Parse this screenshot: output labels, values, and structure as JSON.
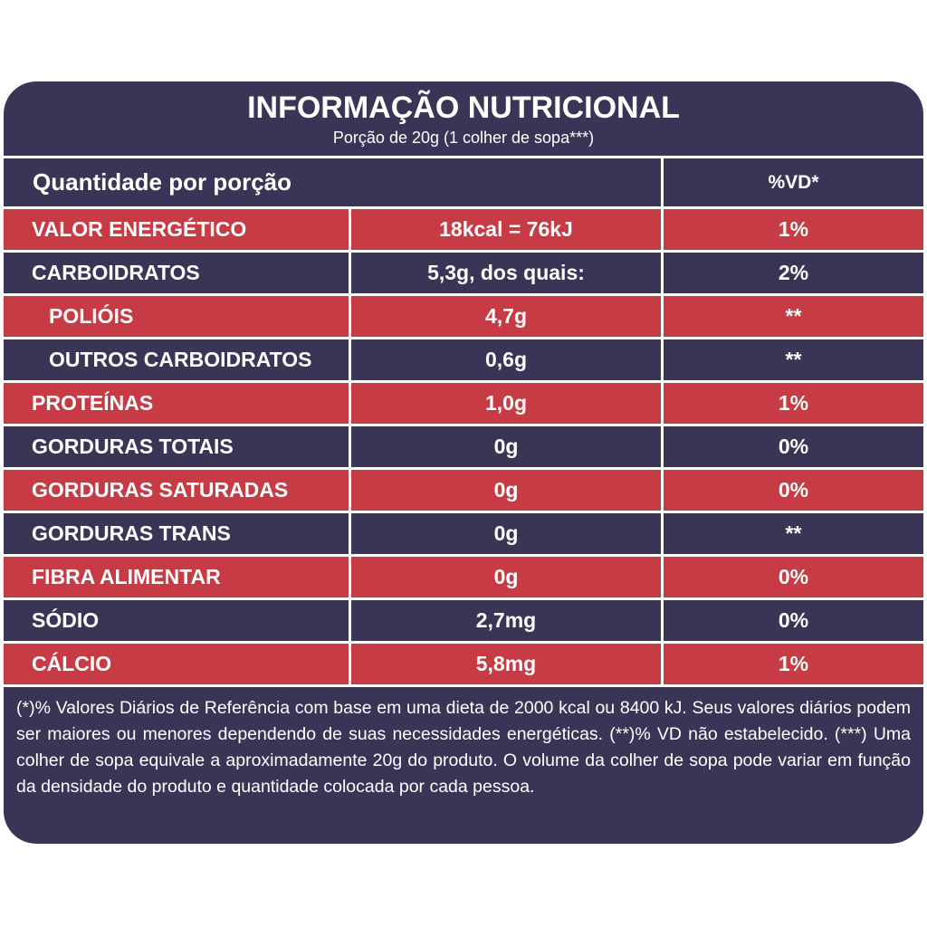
{
  "header": {
    "title": "INFORMAÇÃO NUTRICIONAL",
    "subtitle": "Porção de 20g (1 colher de sopa***)"
  },
  "table": {
    "columns": [
      "Quantidade por porção",
      "%VD*"
    ],
    "rows": [
      [
        "VALOR ENERGÉTICO",
        "18kcal = 76kJ",
        "1%"
      ],
      [
        "CARBOIDRATOS",
        "5,3g, dos quais:",
        "2%"
      ],
      [
        "POLIÓIS",
        "4,7g",
        "**"
      ],
      [
        "OUTROS CARBOIDRATOS",
        "0,6g",
        "**"
      ],
      [
        "PROTEÍNAS",
        "1,0g",
        "1%"
      ],
      [
        "GORDURAS TOTAIS",
        "0g",
        "0%"
      ],
      [
        "GORDURAS SATURADAS",
        "0g",
        "0%"
      ],
      [
        "GORDURAS TRANS",
        "0g",
        "**"
      ],
      [
        "FIBRA ALIMENTAR",
        "0g",
        "0%"
      ],
      [
        "SÓDIO",
        "2,7mg",
        "0%"
      ],
      [
        "CÁLCIO",
        "5,8mg",
        "1%"
      ]
    ]
  },
  "footnote": "(*)% Valores Diários de Referência com base em uma dieta de 2000 kcal ou 8400 kJ. Seus valores diários podem ser maiores ou menores dependendo de suas necessidades energéticas. (**)% VD não estabelecido. (***) Uma colher de sopa equivale a aproximadamente 20g do produto. O volume da colher de sopa pode variar em função da densidade do produto e quantidade colocada por cada pessoa."
}
